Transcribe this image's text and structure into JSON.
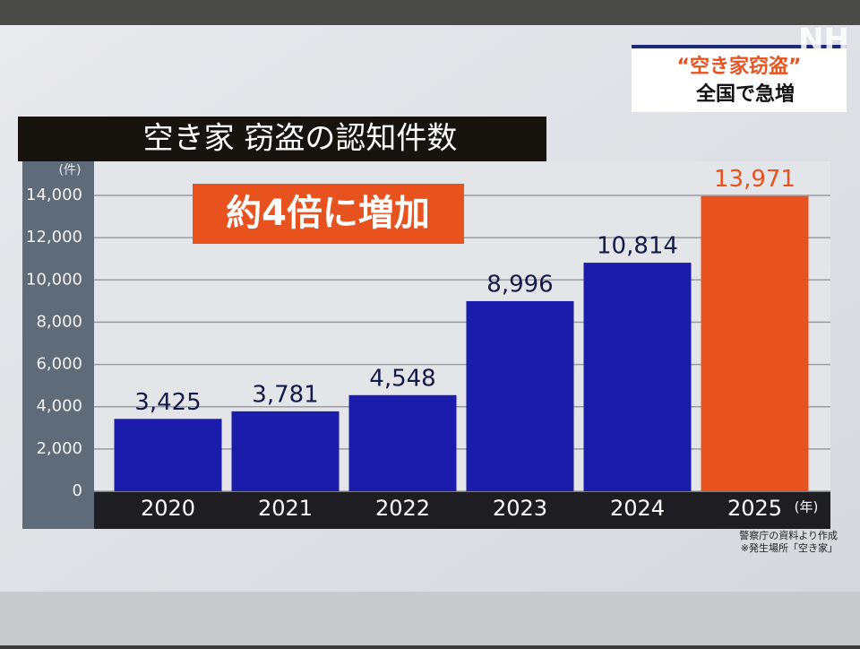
{
  "chart_data": {
    "type": "bar",
    "title": "空き家 窃盗の認知件数",
    "annotation": "約4倍に増加",
    "y_unit": "(件)",
    "x_unit": "(年)",
    "categories": [
      "2020",
      "2021",
      "2022",
      "2023",
      "2024",
      "2025"
    ],
    "values": [
      3425,
      3781,
      4548,
      8996,
      10814,
      13971
    ],
    "value_labels": [
      "3,425",
      "3,781",
      "4,548",
      "8,996",
      "10,814",
      "13,971"
    ],
    "colors": [
      "#1c1caa",
      "#1c1caa",
      "#1c1caa",
      "#1c1caa",
      "#1c1caa",
      "#e8521e"
    ],
    "ylim": [
      0,
      15400
    ],
    "yticks": [
      0,
      {
        "value": 2000,
        "label": "2,000"
      },
      {
        "value": 4000,
        "label": "4,000"
      },
      {
        "value": 6000,
        "label": "6,000"
      },
      {
        "value": 8000,
        "label": "8,000"
      },
      {
        "value": 10000,
        "label": "10,000"
      },
      {
        "value": 12000,
        "label": "12,000"
      },
      {
        "value": 14000,
        "label": "14,000"
      }
    ],
    "grid": true
  },
  "caption": {
    "line1": "“空き家窃盗”",
    "line2": "全国で急増"
  },
  "logo": "NH",
  "source": {
    "line1": "警察庁の資料より作成",
    "line2": "※発生場所「空き家」"
  }
}
